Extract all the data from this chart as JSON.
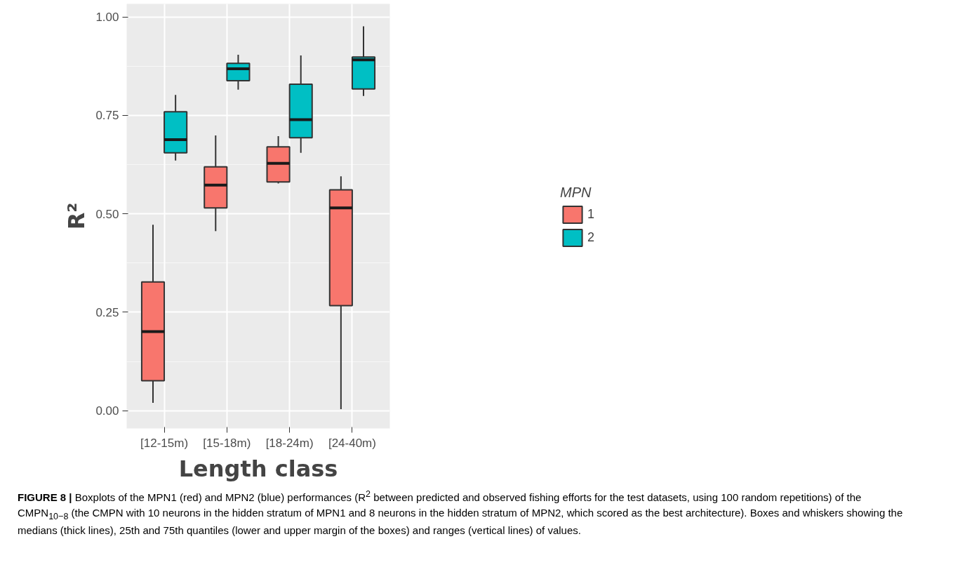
{
  "chart_data": {
    "type": "box",
    "xlabel": "Length class",
    "ylabel": "R²",
    "legend_title": "MPN",
    "legend": "right",
    "grid": true,
    "categories": [
      "[12-15m)",
      "[15-18m)",
      "[18-24m)",
      "[24-40m)"
    ],
    "ylim": [
      -0.045,
      1.033
    ],
    "yticks": [
      {
        "value": 0,
        "label": "0.00"
      },
      {
        "value": 0.25,
        "label": "0.25"
      },
      {
        "value": 0.5,
        "label": "0.50"
      },
      {
        "value": 0.75,
        "label": "0.75"
      },
      {
        "value": 1,
        "label": "1.00"
      }
    ],
    "series": [
      {
        "name": "1",
        "color": "#f8766d",
        "boxes": [
          {
            "low": 0.02,
            "q1": 0.076,
            "median": 0.201,
            "q3": 0.327,
            "high": 0.472
          },
          {
            "low": 0.456,
            "q1": 0.515,
            "median": 0.573,
            "q3": 0.619,
            "high": 0.699
          },
          {
            "low": 0.577,
            "q1": 0.581,
            "median": 0.628,
            "q3": 0.67,
            "high": 0.697
          },
          {
            "low": 0.004,
            "q1": 0.267,
            "median": 0.515,
            "q3": 0.561,
            "high": 0.595
          }
        ]
      },
      {
        "name": "2",
        "color": "#00bfc4",
        "boxes": [
          {
            "low": 0.635,
            "q1": 0.655,
            "median": 0.688,
            "q3": 0.759,
            "high": 0.802
          },
          {
            "low": 0.815,
            "q1": 0.838,
            "median": 0.868,
            "q3": 0.882,
            "high": 0.904
          },
          {
            "low": 0.655,
            "q1": 0.693,
            "median": 0.739,
            "q3": 0.829,
            "high": 0.902
          },
          {
            "low": 0.799,
            "q1": 0.817,
            "median": 0.891,
            "q3": 0.898,
            "high": 0.976
          }
        ]
      }
    ],
    "annotations": [
      "FIGURE 8 | Boxplots of the MPN1 (red) and MPN2 (blue) performances (R$^{2}$ between predicted and observed fishing efforts for the test datasets, using 100 random repetitions) of the CMPN$_{10−8}$ (the CMPN with 10 neurons in the hidden stratum of MPN1 and 8 neurons in the hidden stratum of MPN2, which scored as the best architecture). Boxes and whiskers showing the medians (thick lines), 25th and 75th quantiles (lower and upper margin of the boxes) and ranges (vertical lines) of values."
    ]
  }
}
